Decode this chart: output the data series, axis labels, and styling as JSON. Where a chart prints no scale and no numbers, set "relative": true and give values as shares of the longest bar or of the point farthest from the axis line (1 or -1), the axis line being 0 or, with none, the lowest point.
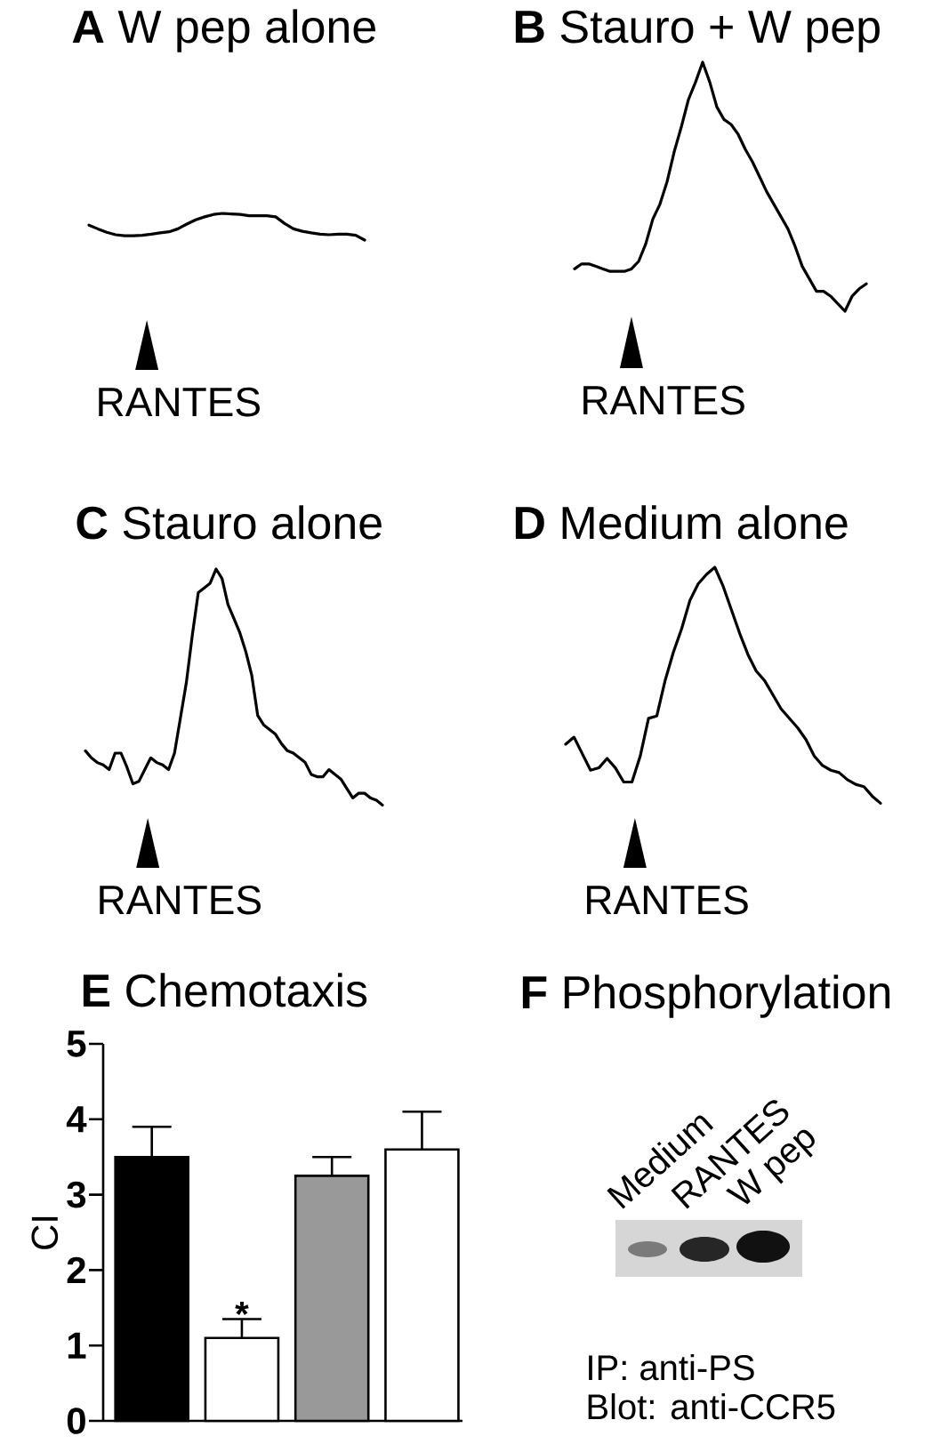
{
  "chart_data": [
    {
      "type": "line",
      "title": "**A** W pep alone",
      "categories": [
        null,
        null,
        null,
        null,
        null,
        null,
        null,
        null,
        null,
        null,
        null,
        null,
        null,
        null,
        null,
        null,
        null,
        null,
        null,
        null,
        null,
        null,
        null,
        null,
        null,
        null,
        null,
        null,
        null,
        null,
        null,
        null
      ],
      "values": [
        0.56,
        0.42,
        0.29,
        0.2,
        0.16,
        0.16,
        0.18,
        0.22,
        0.27,
        0.31,
        0.42,
        0.6,
        0.76,
        0.87,
        0.96,
        1,
        0.98,
        0.96,
        0.91,
        0.91,
        0.91,
        0.87,
        0.62,
        0.42,
        0.33,
        0.27,
        0.22,
        0.2,
        0.22,
        0.22,
        0.18,
        0
      ],
      "color": "#000000",
      "relative": true,
      "annotations": [
        "RANTES"
      ]
    },
    {
      "type": "line",
      "title": "**B** Stauro + W pep",
      "categories": [
        null,
        null,
        null,
        null,
        null,
        null,
        null,
        null,
        null,
        null,
        null,
        null,
        null,
        null,
        null,
        null,
        null,
        null,
        null,
        null,
        null,
        null,
        null,
        null,
        null,
        null,
        null,
        null,
        null,
        null,
        null,
        null,
        null,
        null,
        null,
        null,
        null,
        null,
        null,
        null,
        null,
        null
      ],
      "values": [
        0.17,
        0.19,
        0.19,
        0.18,
        0.17,
        0.16,
        0.16,
        0.16,
        0.17,
        0.2,
        0.27,
        0.37,
        0.43,
        0.52,
        0.64,
        0.74,
        0.85,
        0.92,
        1,
        0.92,
        0.82,
        0.77,
        0.75,
        0.71,
        0.65,
        0.6,
        0.54,
        0.48,
        0.43,
        0.38,
        0.33,
        0.26,
        0.18,
        0.13,
        0.08,
        0.08,
        0.06,
        0.03,
        0,
        0.06,
        0.09,
        0.11
      ],
      "color": "#000000",
      "relative": true,
      "annotations": [
        "RANTES"
      ]
    },
    {
      "type": "line",
      "title": "**C** Stauro alone",
      "categories": [
        null,
        null,
        null,
        null,
        null,
        null,
        null,
        null,
        null,
        null,
        null,
        null,
        null,
        null,
        null,
        null,
        null,
        null,
        null,
        null,
        null,
        null,
        null,
        null,
        null,
        null,
        null,
        null,
        null,
        null,
        null,
        null,
        null,
        null,
        null,
        null,
        null,
        null,
        null,
        null,
        null,
        null,
        null,
        null,
        null,
        null,
        null,
        null,
        null,
        null,
        null
      ],
      "values": [
        0.23,
        0.2,
        0.18,
        0.17,
        0.15,
        0.22,
        0.22,
        0.16,
        0.09,
        0.1,
        0.15,
        0.2,
        0.18,
        0.17,
        0.15,
        0.22,
        0.37,
        0.52,
        0.72,
        0.9,
        0.92,
        0.94,
        1,
        0.96,
        0.85,
        0.79,
        0.73,
        0.65,
        0.55,
        0.38,
        0.34,
        0.32,
        0.3,
        0.26,
        0.23,
        0.22,
        0.2,
        0.18,
        0.13,
        0.12,
        0.12,
        0.15,
        0.13,
        0.11,
        0.07,
        0.03,
        0.05,
        0.05,
        0.03,
        0.02,
        0
      ],
      "color": "#000000",
      "relative": true,
      "annotations": [
        "RANTES"
      ]
    },
    {
      "type": "line",
      "title": "**D** Medium alone",
      "categories": [
        null,
        null,
        null,
        null,
        null,
        null,
        null,
        null,
        null,
        null,
        null,
        null,
        null,
        null,
        null,
        null,
        null,
        null,
        null,
        null,
        null,
        null,
        null,
        null,
        null,
        null,
        null,
        null,
        null,
        null,
        null,
        null,
        null,
        null,
        null,
        null,
        null,
        null,
        null
      ],
      "values": [
        0.25,
        0.28,
        0.21,
        0.14,
        0.15,
        0.19,
        0.15,
        0.09,
        0.09,
        0.2,
        0.36,
        0.37,
        0.52,
        0.64,
        0.74,
        0.86,
        0.93,
        0.97,
        1,
        0.92,
        0.82,
        0.72,
        0.63,
        0.56,
        0.52,
        0.46,
        0.4,
        0.36,
        0.32,
        0.27,
        0.2,
        0.16,
        0.14,
        0.13,
        0.1,
        0.08,
        0.07,
        0.03,
        0
      ],
      "color": "#000000",
      "relative": true,
      "annotations": [
        "RANTES"
      ]
    },
    {
      "type": "bar",
      "title": "**E** Chemotaxis",
      "ylabel": "CI",
      "categories": [
        null,
        null,
        null,
        null
      ],
      "values": [
        3.5,
        1.1,
        3.25,
        3.6
      ],
      "colors": [
        "#000000",
        "#ffffff",
        "#999999",
        "#ffffff"
      ],
      "errors": [
        [
          3.5,
          3.9
        ],
        [
          1.1,
          1.35
        ],
        [
          3.25,
          3.5
        ],
        [
          3.6,
          4.1
        ]
      ],
      "value_labels": [
        null,
        "*",
        null,
        null
      ],
      "ylim": [
        0,
        5
      ],
      "yticks": [
        0,
        1,
        2,
        3,
        4,
        5
      ]
    },
    {
      "type": "other",
      "title": "**F** Phosphorylation",
      "annotations": [
        "Medium",
        "RANTES",
        "W pep",
        "IP: anti-PS",
        "Blot: anti-CCR5"
      ]
    }
  ]
}
